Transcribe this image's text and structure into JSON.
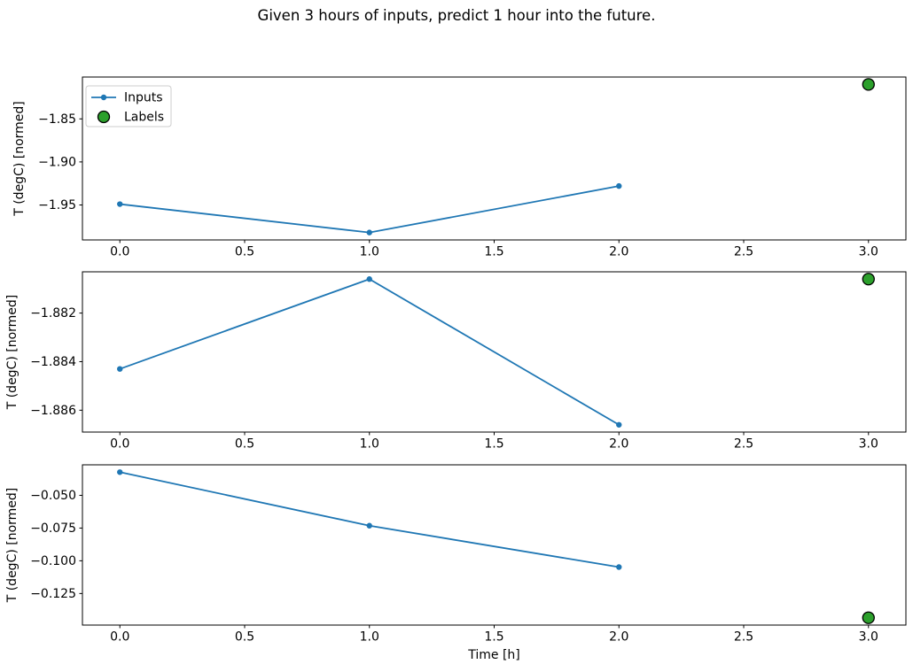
{
  "chart_data": {
    "type": "line",
    "title": "Given 3 hours of inputs, predict 1 hour into the future.",
    "colors": {
      "inputs": "#1f77b4",
      "labels_fill": "#2ca02c",
      "labels_edge": "#000000",
      "axes": "#000000",
      "legend_border": "#cccccc"
    },
    "x": {
      "label": "Time [h]",
      "lim": [
        -0.15,
        3.15
      ],
      "ticks": [
        {
          "value": 0.0,
          "label": "0.0"
        },
        {
          "value": 0.5,
          "label": "0.5"
        },
        {
          "value": 1.0,
          "label": "1.0"
        },
        {
          "value": 1.5,
          "label": "1.5"
        },
        {
          "value": 2.0,
          "label": "2.0"
        },
        {
          "value": 2.5,
          "label": "2.5"
        },
        {
          "value": 3.0,
          "label": "3.0"
        }
      ]
    },
    "legend": {
      "items": [
        {
          "label": "Inputs",
          "marker": "line-with-dot",
          "color": "#1f77b4"
        },
        {
          "label": "Labels",
          "marker": "filled-circle",
          "color": "#2ca02c"
        }
      ]
    },
    "subplots": [
      {
        "ylabel": "T (degC) [normed]",
        "ylim": [
          -1.9906,
          -1.8014
        ],
        "yticks": [
          {
            "value": -1.85,
            "label": "−1.85"
          },
          {
            "value": -1.9,
            "label": "−1.90"
          },
          {
            "value": -1.95,
            "label": "−1.95"
          }
        ],
        "series": {
          "inputs": {
            "x": [
              0,
              1,
              2
            ],
            "y": [
              -1.949,
              -1.982,
              -1.928
            ]
          },
          "labels": {
            "x": [
              3
            ],
            "y": [
              -1.81
            ]
          }
        }
      },
      {
        "ylabel": "T (degC) [normed]",
        "ylim": [
          -1.8869,
          -1.8803
        ],
        "yticks": [
          {
            "value": -1.882,
            "label": "−1.882"
          },
          {
            "value": -1.884,
            "label": "−1.884"
          },
          {
            "value": -1.886,
            "label": "−1.886"
          }
        ],
        "series": {
          "inputs": {
            "x": [
              0,
              1,
              2
            ],
            "y": [
              -1.8843,
              -1.8806,
              -1.8866
            ]
          },
          "labels": {
            "x": [
              3
            ],
            "y": [
              -1.8806
            ]
          }
        }
      },
      {
        "ylabel": "T (degC) [normed]",
        "ylim": [
          -0.1491,
          -0.0267
        ],
        "yticks": [
          {
            "value": -0.05,
            "label": "−0.050"
          },
          {
            "value": -0.075,
            "label": "−0.075"
          },
          {
            "value": -0.1,
            "label": "−0.100"
          },
          {
            "value": -0.125,
            "label": "−0.125"
          }
        ],
        "series": {
          "inputs": {
            "x": [
              0,
              1,
              2
            ],
            "y": [
              -0.0323,
              -0.0732,
              -0.1048
            ]
          },
          "labels": {
            "x": [
              3
            ],
            "y": [
              -0.1435
            ]
          }
        }
      }
    ]
  }
}
